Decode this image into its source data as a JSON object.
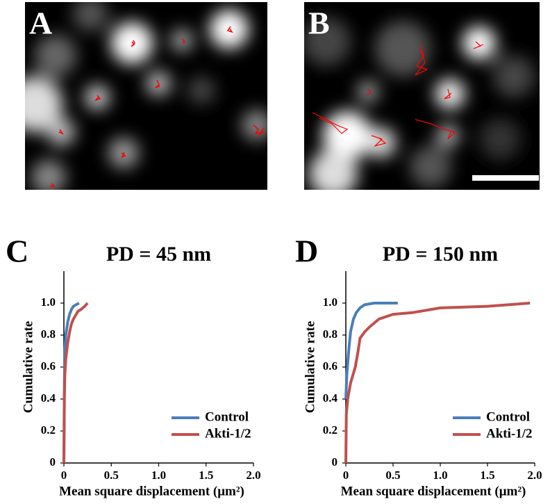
{
  "image_panels": [
    {
      "label": "A"
    },
    {
      "label": "B"
    }
  ],
  "chart_data": [
    {
      "type": "line",
      "panel": "C",
      "title": "PD = 45 nm",
      "xlabel": "Mean square displacement (μm²)",
      "ylabel": "Cumulative rate",
      "xlim": [
        0,
        2
      ],
      "ylim": [
        0,
        1.2
      ],
      "xticks": [
        0,
        0.5,
        {
          "value": 1,
          "label": "1.0"
        },
        1.5,
        {
          "value": 2,
          "label": "2.0"
        }
      ],
      "yticks": [
        0,
        0.2,
        0.4,
        0.6,
        0.8,
        {
          "value": 1,
          "label": "1.0"
        }
      ],
      "legend": "lower right",
      "series": [
        {
          "name": "Control",
          "color": "#4a7ebb",
          "x": [
            0,
            0.005,
            0.01,
            0.02,
            0.04,
            0.06,
            0.08,
            0.1,
            0.13,
            0.16
          ],
          "values": [
            0,
            0.5,
            0.7,
            0.8,
            0.88,
            0.93,
            0.96,
            0.98,
            0.99,
            1
          ]
        },
        {
          "name": "Akti-1/2",
          "color": "#c0504d",
          "x": [
            0,
            0.005,
            0.01,
            0.02,
            0.04,
            0.06,
            0.08,
            0.1,
            0.12,
            0.15,
            0.18,
            0.2,
            0.22,
            0.25
          ],
          "values": [
            0,
            0.4,
            0.55,
            0.65,
            0.75,
            0.82,
            0.87,
            0.9,
            0.92,
            0.95,
            0.96,
            0.97,
            0.98,
            1
          ]
        }
      ]
    },
    {
      "type": "line",
      "panel": "D",
      "title": "PD = 150 nm",
      "xlabel": "Mean square displacement (μm²)",
      "ylabel": "Cumulative rate",
      "xlim": [
        0,
        2
      ],
      "ylim": [
        0,
        1.2
      ],
      "xticks": [
        0,
        0.5,
        {
          "value": 1,
          "label": "1.0"
        },
        1.5,
        {
          "value": 2,
          "label": "2.0"
        }
      ],
      "yticks": [
        0,
        0.2,
        0.4,
        0.6,
        0.8,
        {
          "value": 1,
          "label": "1.0"
        }
      ],
      "legend": "lower right",
      "series": [
        {
          "name": "Control",
          "color": "#4a7ebb",
          "x": [
            0,
            0.01,
            0.03,
            0.05,
            0.08,
            0.11,
            0.15,
            0.2,
            0.3,
            0.4,
            0.55
          ],
          "values": [
            0.4,
            0.55,
            0.7,
            0.82,
            0.9,
            0.94,
            0.97,
            0.99,
            1,
            1,
            1
          ]
        },
        {
          "name": "Akti-1/2",
          "color": "#c0504d",
          "x": [
            0,
            0.005,
            0.02,
            0.05,
            0.1,
            0.13,
            0.15,
            0.2,
            0.25,
            0.35,
            0.5,
            0.7,
            1,
            1.5,
            1.95
          ],
          "values": [
            0,
            0.3,
            0.4,
            0.5,
            0.6,
            0.7,
            0.78,
            0.82,
            0.85,
            0.9,
            0.93,
            0.94,
            0.97,
            0.98,
            1
          ]
        }
      ]
    }
  ]
}
